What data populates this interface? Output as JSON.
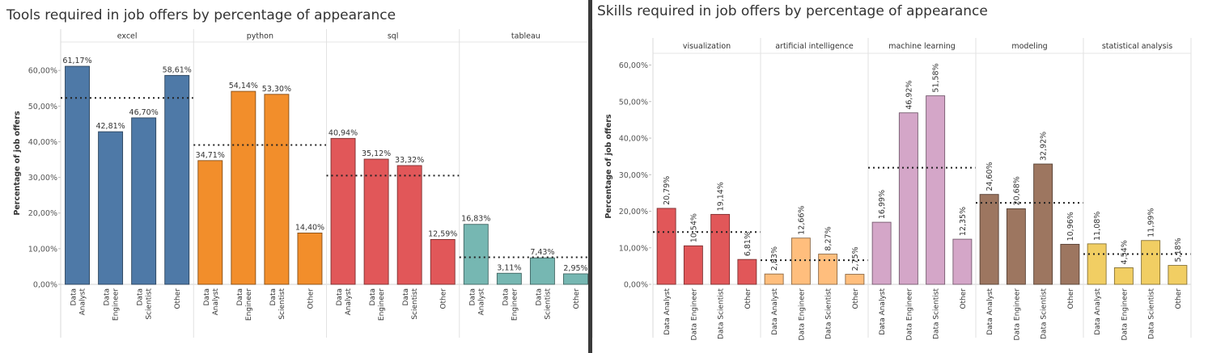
{
  "chart_data": [
    {
      "type": "bar",
      "title": "Tools required in  job offers by percentage of appearance",
      "ylabel": "Percentage of job offers",
      "xlabel": "",
      "ylim": [
        0,
        65
      ],
      "yticks": [
        "0,00%",
        "10,00%",
        "20,00%",
        "30,00%",
        "40,00%",
        "50,00%",
        "60,00%"
      ],
      "categories": [
        "Data Analyst",
        "Data Engineer",
        "Data Scientist",
        "Other"
      ],
      "category_label_style": "wrapped",
      "reference_lines": "average",
      "bar_label_orientation": "horizontal",
      "grid": false,
      "series": [
        {
          "name": "excel",
          "color": "#4e79a7",
          "values": [
            61.17,
            42.81,
            46.7,
            58.61
          ],
          "labels": [
            "61,17%",
            "42,81%",
            "46,70%",
            "58,61%"
          ],
          "average": 52.3
        },
        {
          "name": "python",
          "color": "#f28e2b",
          "values": [
            34.71,
            54.14,
            53.3,
            14.4
          ],
          "labels": [
            "34,71%",
            "54,14%",
            "53,30%",
            "14,40%"
          ],
          "average": 39.1
        },
        {
          "name": "sql",
          "color": "#e15759",
          "values": [
            40.94,
            35.12,
            33.32,
            12.59
          ],
          "labels": [
            "40,94%",
            "35,12%",
            "33,32%",
            "12,59%"
          ],
          "average": 30.5
        },
        {
          "name": "tableau",
          "color": "#76b7b2",
          "values": [
            16.83,
            3.11,
            7.43,
            2.95
          ],
          "labels": [
            "16,83%",
            "3,11%",
            "7,43%",
            "2,95%"
          ],
          "average": 7.6
        }
      ]
    },
    {
      "type": "bar",
      "title": "Skills required in  job offers by percentage of appearance",
      "ylabel": "Percentage of job offers",
      "xlabel": "",
      "ylim": [
        0,
        63
      ],
      "yticks": [
        "0,00%",
        "10,00%",
        "20,00%",
        "30,00%",
        "40,00%",
        "50,00%",
        "60,00%"
      ],
      "categories": [
        "Data Analyst",
        "Data Engineer",
        "Data Scientist",
        "Other"
      ],
      "category_label_style": "single-line",
      "reference_lines": "average",
      "bar_label_orientation": "vertical",
      "grid": false,
      "series": [
        {
          "name": "visualization",
          "color": "#e15759",
          "values": [
            20.79,
            10.54,
            19.14,
            6.81
          ],
          "labels": [
            "20,79%",
            "10,54%",
            "19,14%",
            "6,81%"
          ],
          "average": 14.3
        },
        {
          "name": "artificial intelligence",
          "color": "#ffbe7d",
          "values": [
            2.83,
            12.66,
            8.27,
            2.75
          ],
          "labels": [
            "2,83%",
            "12,66%",
            "8,27%",
            "2,75%"
          ],
          "average": 6.6
        },
        {
          "name": "machine learning",
          "color": "#d4a6c8",
          "values": [
            16.99,
            46.92,
            51.58,
            12.35
          ],
          "labels": [
            "16,99%",
            "46,92%",
            "51,58%",
            "12,35%"
          ],
          "average": 31.9
        },
        {
          "name": "modeling",
          "color": "#9d7660",
          "values": [
            24.6,
            20.68,
            32.92,
            10.96
          ],
          "labels": [
            "24,60%",
            "20,68%",
            "32,92%",
            "10,96%"
          ],
          "average": 22.3
        },
        {
          "name": "statistical analysis",
          "color": "#f1ce63",
          "values": [
            11.08,
            4.54,
            11.99,
            5.18
          ],
          "labels": [
            "11,08%",
            "4,54%",
            "11,99%",
            "5,18%"
          ],
          "average": 8.3
        }
      ]
    }
  ]
}
